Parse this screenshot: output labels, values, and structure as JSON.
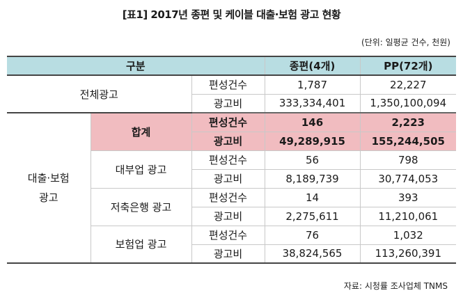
{
  "title": "[표1] 2017년 종편 및 케이블 대출·보험 광고 현황",
  "unit_note": "(단위: 일평균 건수, 천원)",
  "source_note": "자료: 시청률 조사업체 TNMS",
  "header": {
    "category": "구분",
    "col1": "종편(4개)",
    "col2": "PP(72개)"
  },
  "metric_labels": {
    "count": "편성건수",
    "cost": "광고비"
  },
  "total": {
    "label": "전체광고",
    "count": [
      "1,787",
      "22,227"
    ],
    "cost": [
      "333,334,401",
      "1,350,100,094"
    ]
  },
  "loan_insurance": {
    "label_line1": "대출·보험",
    "label_line2": "광고",
    "rows": [
      {
        "label": "합계",
        "count": [
          "146",
          "2,223"
        ],
        "cost": [
          "49,289,915",
          "155,244,505"
        ]
      },
      {
        "label": "대부업 광고",
        "count": [
          "56",
          "798"
        ],
        "cost": [
          "8,189,739",
          "30,774,053"
        ]
      },
      {
        "label": "저축은행 광고",
        "count": [
          "14",
          "393"
        ],
        "cost": [
          "2,275,611",
          "11,210,061"
        ]
      },
      {
        "label": "보험업 광고",
        "count": [
          "76",
          "1,032"
        ],
        "cost": [
          "38,824,565",
          "113,260,391"
        ]
      }
    ]
  },
  "colors": {
    "header_bg": "#b8dde2",
    "highlight_bg": "#f1bcc0"
  }
}
